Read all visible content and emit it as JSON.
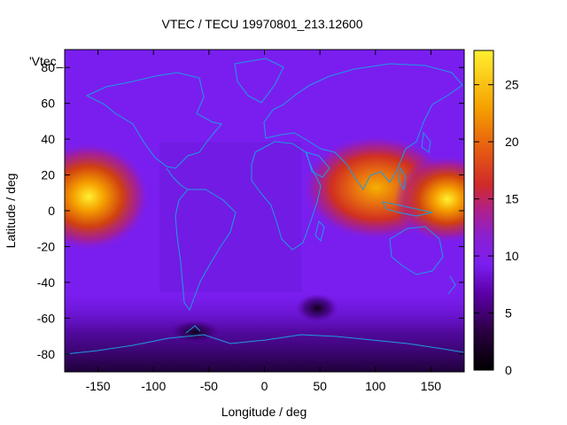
{
  "chart_data": {
    "type": "heatmap",
    "title": "VTEC / TECU 19970801_213.12600",
    "xlabel": "Longitude / deg",
    "ylabel": "Latitude / deg",
    "series_key": "'Vtec_",
    "xlim": [
      -180,
      180
    ],
    "ylim": [
      -90,
      90
    ],
    "x_ticks": [
      -150,
      -100,
      -50,
      0,
      50,
      100,
      150
    ],
    "y_ticks": [
      -80,
      -60,
      -40,
      -20,
      0,
      20,
      40,
      60,
      80
    ],
    "colorbar": {
      "range": [
        0,
        28
      ],
      "ticks": [
        0,
        5,
        10,
        15,
        20,
        25
      ],
      "palette": [
        "#000000",
        "#2a0040",
        "#5c00a8",
        "#7a1ef0",
        "#8a20d0",
        "#b0208a",
        "#d02a2a",
        "#e86010",
        "#f5a000",
        "#fff030"
      ]
    },
    "peaks": [
      {
        "lon": -160,
        "lat": 10,
        "value": 24
      },
      {
        "lon": 108,
        "lat": 12,
        "value": 21
      },
      {
        "lon": 170,
        "lat": 5,
        "value": 23
      }
    ],
    "background_value": 8,
    "coastline_color": "#1e9be0"
  }
}
